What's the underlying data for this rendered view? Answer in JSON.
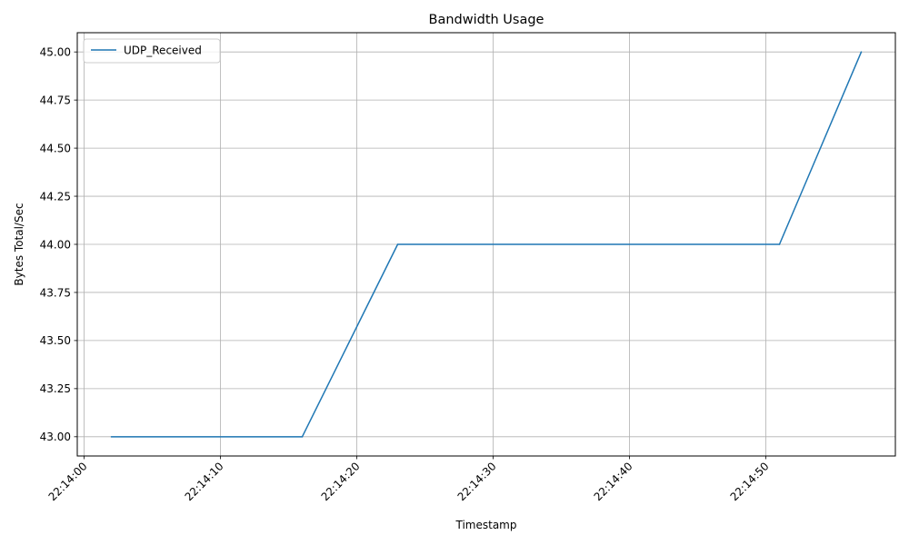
{
  "chart_data": {
    "type": "line",
    "title": "Bandwidth Usage",
    "xlabel": "Timestamp",
    "ylabel": "Bytes Total/Sec",
    "x_ticks": [
      "22:14:00",
      "22:14:10",
      "22:14:20",
      "22:14:30",
      "22:14:40",
      "22:14:50"
    ],
    "y_ticks": [
      "43.00",
      "43.25",
      "43.50",
      "43.75",
      "44.00",
      "44.25",
      "44.50",
      "44.75",
      "45.00"
    ],
    "ylim": [
      42.9,
      45.1
    ],
    "xlim": [
      "22:13:59.5",
      "22:14:59.5"
    ],
    "grid": true,
    "legend_position": "top-left",
    "series": [
      {
        "name": "UDP_Received",
        "color": "#1f77b4",
        "x": [
          "22:14:02",
          "22:14:16",
          "22:14:23",
          "22:14:51",
          "22:14:57"
        ],
        "y": [
          43.0,
          43.0,
          44.0,
          44.0,
          45.0
        ]
      }
    ]
  }
}
